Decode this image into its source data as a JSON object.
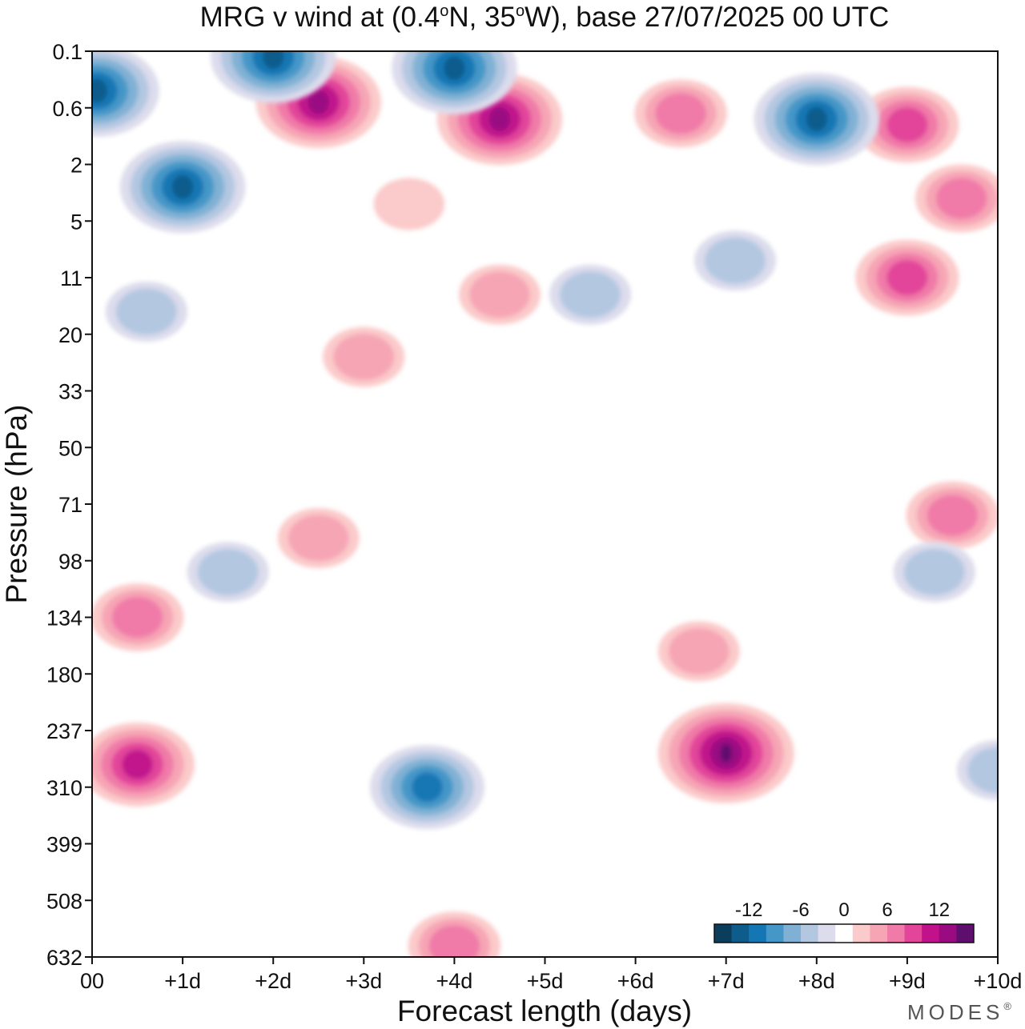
{
  "chart_data": {
    "type": "contour",
    "title": "MRG v wind at (0.4°N, 35°W),  base 27/07/2025  00 UTC",
    "title_parts": {
      "lead": "MRG v wind at (0.4",
      "deg1": "o",
      "mid": "N, 35",
      "deg2": "o",
      "tail": "W),  base 27/07/2025  00 UTC"
    },
    "xlabel": "Forecast length (days)",
    "ylabel": "Pressure (hPa)",
    "x_ticks": [
      "00",
      "+1d",
      "+2d",
      "+3d",
      "+4d",
      "+5d",
      "+6d",
      "+7d",
      "+8d",
      "+9d",
      "+10d"
    ],
    "x_range_days": [
      0,
      10
    ],
    "y_ticks": [
      "0.1",
      "0.6",
      "2",
      "5",
      "11",
      "20",
      "33",
      "50",
      "71",
      "98",
      "134",
      "180",
      "237",
      "310",
      "399",
      "508",
      "632"
    ],
    "y_axis_order": "pressure increasing downward",
    "colorbar": {
      "labels": [
        "-12",
        "-6",
        "0",
        "6",
        "12"
      ],
      "label_values": [
        -12,
        -6,
        0,
        6,
        12
      ],
      "levels": [
        -14,
        -12,
        -10,
        -8,
        -6,
        -4,
        -2,
        2,
        4,
        6,
        8,
        10,
        12,
        14
      ],
      "colors": [
        "#0b3e5c",
        "#0e5c8c",
        "#1477b4",
        "#4597c8",
        "#80b1d4",
        "#b3c7e1",
        "#dcdcec",
        "#ffffff",
        "#fbcaca",
        "#f6a5b5",
        "#f07aa8",
        "#e2459a",
        "#c1128c",
        "#9a0b82",
        "#5e0e6d"
      ]
    },
    "features": [
      {
        "name": "upper-trop-positive-day0",
        "x_day": 0.5,
        "y_tick_index": 12.6,
        "sign": "positive",
        "peak": 11
      },
      {
        "name": "upper-trop-negative-day3-4",
        "x_day": 3.7,
        "y_tick_index": 13.0,
        "sign": "negative",
        "peak": -11
      },
      {
        "name": "upper-trop-positive-day7",
        "x_day": 7.0,
        "y_tick_index": 12.4,
        "sign": "positive",
        "peak": 15
      },
      {
        "name": "negative-day10",
        "x_day": 10.0,
        "y_tick_index": 12.7,
        "sign": "negative",
        "peak": -5
      },
      {
        "name": "positive-bottom-day4",
        "x_day": 4.0,
        "y_tick_index": 15.8,
        "sign": "positive",
        "peak": 7
      },
      {
        "name": "positive-day0-134hPa",
        "x_day": 0.5,
        "y_tick_index": 10.0,
        "sign": "positive",
        "peak": 7
      },
      {
        "name": "positive-71hPa-day2",
        "x_day": 2.5,
        "y_tick_index": 8.6,
        "sign": "positive",
        "peak": 4
      },
      {
        "name": "positive-71hPa-day9",
        "x_day": 9.5,
        "y_tick_index": 8.2,
        "sign": "positive",
        "peak": 7
      },
      {
        "name": "negative-98hPa-day9",
        "x_day": 9.3,
        "y_tick_index": 9.2,
        "sign": "negative",
        "peak": -5
      },
      {
        "name": "negative-0.6hPa-day8",
        "x_day": 8.0,
        "y_tick_index": 1.2,
        "sign": "negative",
        "peak": -13
      },
      {
        "name": "negative-0.1hPa-day4",
        "x_day": 4.0,
        "y_tick_index": 0.3,
        "sign": "negative",
        "peak": -12
      },
      {
        "name": "negative-0.1hPa-day2",
        "x_day": 2.0,
        "y_tick_index": 0.1,
        "sign": "negative",
        "peak": -13
      },
      {
        "name": "negative-0.6hPa-day0",
        "x_day": 0.05,
        "y_tick_index": 0.7,
        "sign": "negative",
        "peak": -12
      },
      {
        "name": "negative-3hPa-day1",
        "x_day": 1.0,
        "y_tick_index": 2.4,
        "sign": "negative",
        "peak": -12
      },
      {
        "name": "positive-0.6hPa-day2.5",
        "x_day": 2.5,
        "y_tick_index": 0.9,
        "sign": "positive",
        "peak": 13
      },
      {
        "name": "positive-1hPa-day4.5",
        "x_day": 4.5,
        "y_tick_index": 1.2,
        "sign": "positive",
        "peak": 13
      },
      {
        "name": "positive-1hPa-day6.5",
        "x_day": 6.5,
        "y_tick_index": 1.1,
        "sign": "positive",
        "peak": 7
      },
      {
        "name": "positive-1hPa-day9",
        "x_day": 9.0,
        "y_tick_index": 1.3,
        "sign": "positive",
        "peak": 9
      },
      {
        "name": "positive-4hPa-day9.5",
        "x_day": 9.6,
        "y_tick_index": 2.6,
        "sign": "positive",
        "peak": 7
      },
      {
        "name": "positive-3hPa-day3.5",
        "x_day": 3.5,
        "y_tick_index": 2.7,
        "sign": "positive",
        "peak": 3
      },
      {
        "name": "positive-11hPa-day9",
        "x_day": 9.0,
        "y_tick_index": 4.0,
        "sign": "positive",
        "peak": 8
      },
      {
        "name": "positive-13hPa-day4.5",
        "x_day": 4.5,
        "y_tick_index": 4.3,
        "sign": "positive",
        "peak": 4
      },
      {
        "name": "negative-14hPa-day5.5",
        "x_day": 5.5,
        "y_tick_index": 4.3,
        "sign": "negative",
        "peak": -5
      },
      {
        "name": "negative-9hPa-day7",
        "x_day": 7.1,
        "y_tick_index": 3.7,
        "sign": "negative",
        "peak": -5
      },
      {
        "name": "negative-15hPa-day0.5",
        "x_day": 0.6,
        "y_tick_index": 4.6,
        "sign": "negative",
        "peak": -5
      },
      {
        "name": "positive-25hPa-day3",
        "x_day": 3.0,
        "y_tick_index": 5.4,
        "sign": "positive",
        "peak": 4
      },
      {
        "name": "negative-98hPa-day1.5",
        "x_day": 1.5,
        "y_tick_index": 9.2,
        "sign": "negative",
        "peak": -5
      },
      {
        "name": "positive-160hPa-day6.5",
        "x_day": 6.7,
        "y_tick_index": 10.6,
        "sign": "positive",
        "peak": 4
      }
    ]
  },
  "brand": {
    "text": "MODES",
    "mark": "®"
  }
}
